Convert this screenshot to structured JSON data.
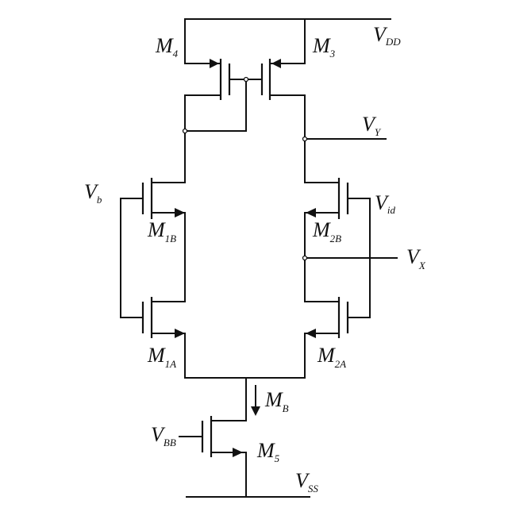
{
  "diagram": {
    "labels": {
      "vdd": {
        "main": "V",
        "sub": "DD"
      },
      "m4": {
        "main": "M",
        "sub": "4"
      },
      "m3": {
        "main": "M",
        "sub": "3"
      },
      "vy": {
        "main": "V",
        "sub": "Y"
      },
      "vb": {
        "main": "V",
        "sub": "b"
      },
      "vid": {
        "main": "V",
        "sub": "id"
      },
      "m1b": {
        "main": "M",
        "sub": "1B"
      },
      "m2b": {
        "main": "M",
        "sub": "2B"
      },
      "vx": {
        "main": "V",
        "sub": "X"
      },
      "m1a": {
        "main": "M",
        "sub": "1A"
      },
      "m2a": {
        "main": "M",
        "sub": "2A"
      },
      "mb_current": {
        "main": "M",
        "sub": "B"
      },
      "vbb": {
        "main": "V",
        "sub": "BB"
      },
      "m5": {
        "main": "M",
        "sub": "5"
      },
      "vss": {
        "main": "V",
        "sub": "SS"
      }
    }
  }
}
